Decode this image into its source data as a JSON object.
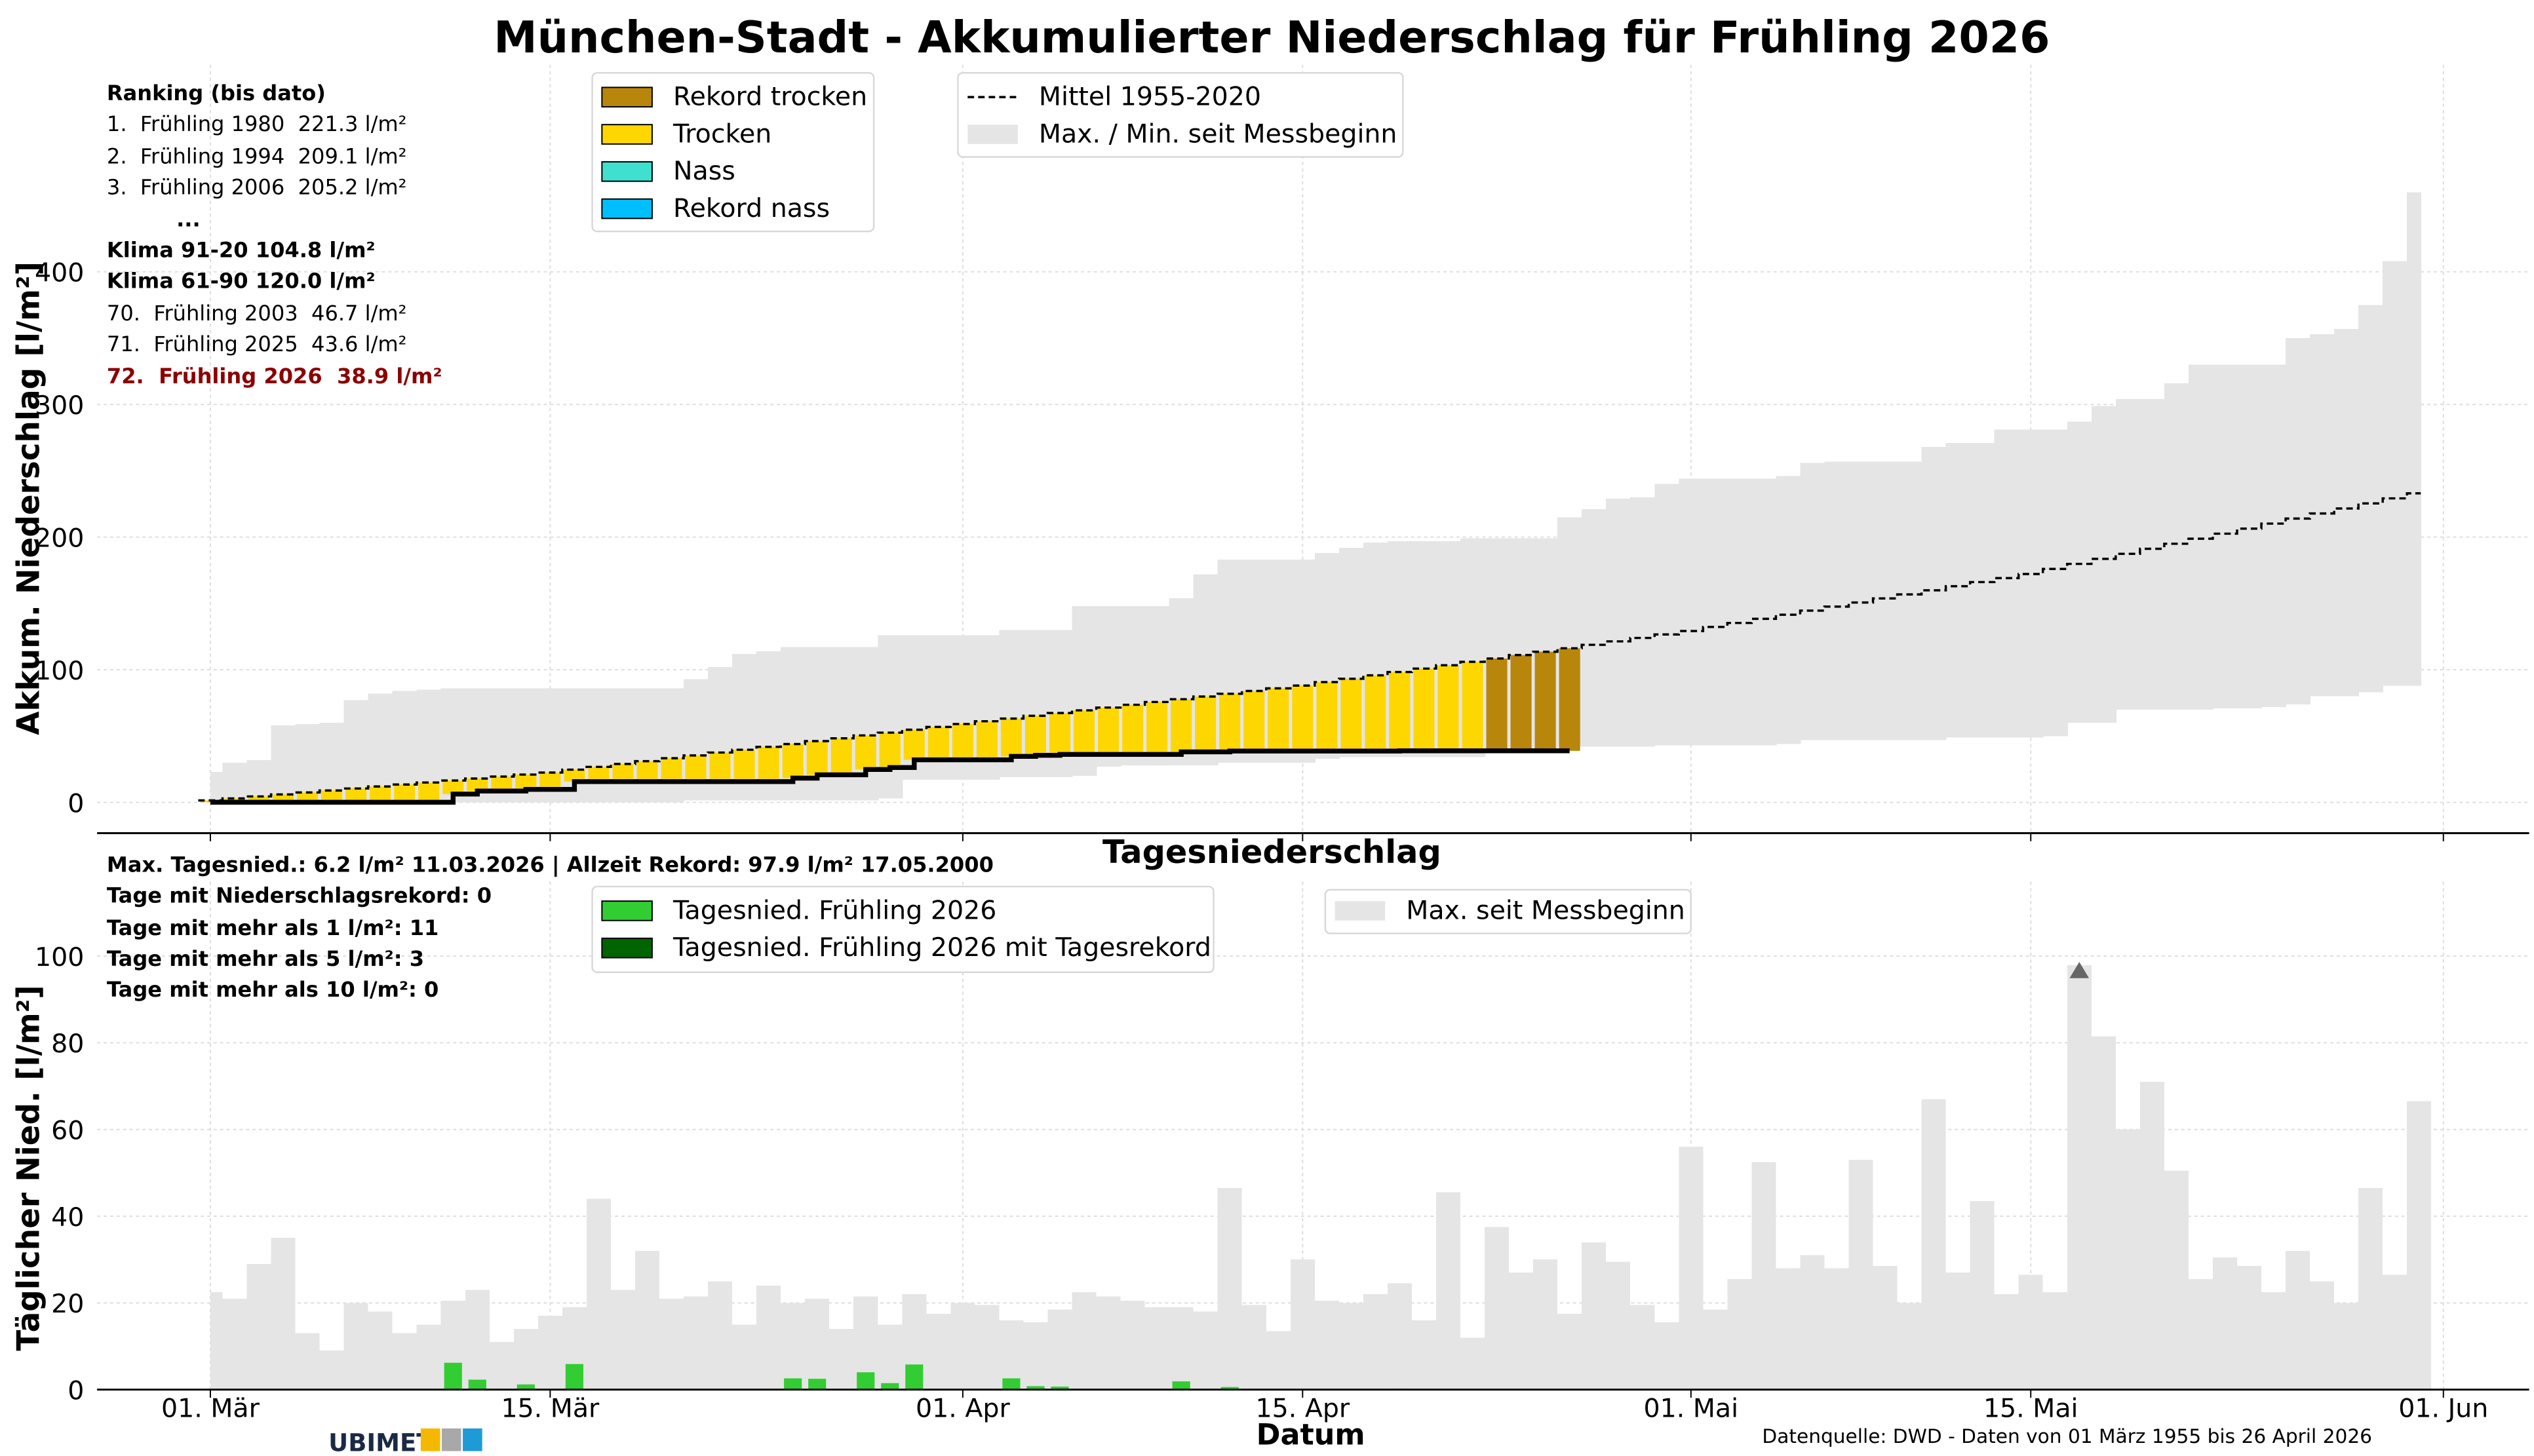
{
  "title": "München-Stadt - Akkumulierter Niederschlag für Frühling 2026",
  "ranking": {
    "heading": "Ranking (bis dato)",
    "top": [
      "1.  Frühling 1980  221.3 l/m²",
      "2.  Frühling 1994  209.1 l/m²",
      "3.  Frühling 2006  205.2 l/m²"
    ],
    "ellipsis": "...",
    "klima": [
      "Klima 91-20 104.8 l/m²",
      "Klima 61-90 120.0 l/m²"
    ],
    "bottom": [
      "70.  Frühling 2003  46.7 l/m²",
      "71.  Frühling 2025  43.6 l/m²"
    ],
    "current": "72.  Frühling 2026  38.9 l/m²"
  },
  "stats": [
    "Max. Tagesnied.: 6.2 l/m² 11.03.2026 | Allzeit Rekord: 97.9 l/m² 17.05.2000",
    "Tage mit Niederschlagsrekord: 0",
    "Tage mit mehr als 1 l/m²: 11",
    "Tage mit mehr als 5 l/m²: 3",
    "Tage mit mehr als 10 l/m²: 0"
  ],
  "legend_category": [
    {
      "label": "Rekord trocken",
      "color": "#B8860B"
    },
    {
      "label": "Trocken",
      "color": "#FFD700"
    },
    {
      "label": "Nass",
      "color": "#40E0D0"
    },
    {
      "label": "Rekord nass",
      "color": "#00BFFF"
    }
  ],
  "legend_reference": [
    {
      "label": "Mittel 1955-2020",
      "icon": "dashed-line"
    },
    {
      "label": "Max. / Min. seit Messbeginn",
      "color": "#E5E5E5"
    }
  ],
  "legend_daily": [
    {
      "label": "Tagesnied. Frühling 2026",
      "color": "#32CD32"
    },
    {
      "label": "Tagesnied. Frühling 2026 mit Tagesrekord",
      "color": "#006400"
    }
  ],
  "legend_daily_max": {
    "label": "Max. seit Messbeginn",
    "color": "#E5E5E5"
  },
  "footer": {
    "source": "Datenquelle: DWD - Daten von 01 März 1955 bis 26 April 2026",
    "logo_text": "UBIMET"
  },
  "chart_data": [
    {
      "type": "bar",
      "title": "München-Stadt - Akkumulierter Niederschlag für Frühling 2026",
      "xlabel": "",
      "ylabel": "Akkum. Niederschlag [l/m²]",
      "ylim": [
        -23,
        480
      ],
      "yticks": [
        0,
        100,
        200,
        300,
        400
      ],
      "xticks": [
        {
          "day": 0,
          "label": "01. Mär"
        },
        {
          "day": 14,
          "label": "15. Mär"
        },
        {
          "day": 31,
          "label": "01. Apr"
        },
        {
          "day": 45,
          "label": "15. Apr"
        },
        {
          "day": 61,
          "label": "01. Mai"
        },
        {
          "day": 75,
          "label": "15. Mai"
        },
        {
          "day": 92,
          "label": "01. Jun"
        }
      ],
      "x_start": "2026-03-01",
      "grid": true,
      "series": [
        {
          "name": "Max. seit Messbeginn (kumuliert)",
          "values": [
            23,
            30,
            32,
            58,
            59,
            60,
            77,
            82,
            84,
            85,
            86,
            86,
            86,
            86,
            86,
            86,
            86,
            86,
            86,
            86,
            93,
            102,
            112,
            114,
            117,
            117,
            117,
            117,
            126,
            126,
            126,
            126,
            126,
            130,
            130,
            130,
            148,
            148,
            148,
            148,
            154,
            172,
            183,
            183,
            183,
            183,
            188,
            192,
            196,
            197,
            197,
            197,
            199,
            199,
            199,
            199,
            215,
            221,
            229,
            230,
            240,
            244,
            244,
            244,
            244,
            246,
            256,
            257,
            257,
            257,
            257,
            268,
            271,
            271,
            281,
            281,
            281,
            287,
            299,
            304,
            304,
            316,
            330,
            330,
            330,
            330,
            350,
            353,
            357,
            375,
            408,
            460
          ]
        },
        {
          "name": "Min. seit Messbeginn (kumuliert)",
          "values": [
            0,
            0,
            0,
            0,
            0,
            0,
            0,
            0,
            0,
            0,
            0,
            0,
            0,
            0,
            0,
            0,
            0,
            0,
            0,
            0,
            1.5,
            1.5,
            1.5,
            1.5,
            1.5,
            1.5,
            1.5,
            1.5,
            3,
            17,
            17,
            17,
            17,
            19,
            19,
            19,
            20,
            27,
            28,
            28,
            28,
            28,
            30,
            30,
            30,
            30,
            33,
            34,
            34,
            34,
            34,
            34,
            34,
            39.5,
            39.5,
            39.5,
            42,
            42,
            42,
            42,
            43,
            43,
            43,
            43,
            43,
            44,
            47,
            47,
            47,
            47,
            47,
            47,
            49,
            49,
            49,
            49,
            50,
            60,
            60,
            70,
            70,
            70,
            70,
            71,
            71,
            72,
            74,
            80,
            80,
            83,
            88,
            88
          ]
        },
        {
          "name": "Mittel 1955-2020",
          "values": [
            1.5,
            3,
            4.5,
            6,
            7.5,
            9,
            10.5,
            12,
            13.5,
            15,
            16.5,
            18,
            19.5,
            21,
            22.5,
            24.7,
            26.8,
            29,
            31.1,
            33.3,
            35.4,
            37.6,
            39.7,
            41.9,
            44,
            46.2,
            48.3,
            50.5,
            52.6,
            54.8,
            56.9,
            59.1,
            61.2,
            63.2,
            65.3,
            67.4,
            69.4,
            71.5,
            73.6,
            75.7,
            77.8,
            79.8,
            81.9,
            84,
            86,
            88.1,
            90.7,
            93.2,
            95.8,
            98.3,
            100.9,
            103.4,
            106,
            108.5,
            111.1,
            113.6,
            116.2,
            118.8,
            121.4,
            124,
            126.6,
            129.2,
            132.3,
            135.3,
            138.4,
            141.5,
            144.6,
            147.6,
            150.7,
            153.8,
            156.8,
            159.9,
            163,
            166.1,
            169.1,
            172.2,
            176,
            179.8,
            183.6,
            187.4,
            191.2,
            195,
            198.8,
            202.6,
            206.4,
            210.2,
            214,
            217.8,
            221.6,
            225.4,
            229.2,
            233
          ]
        }
      ]
    },
    {
      "type": "bar",
      "title": "Tagesniederschlag",
      "xlabel": "Datum",
      "ylabel": "Täglicher Nied. [l/m²]",
      "ylim": [
        0,
        102
      ],
      "yticks": [
        0,
        20,
        40,
        60,
        80,
        100
      ],
      "xticks": [
        {
          "day": 0,
          "label": "01. Mär"
        },
        {
          "day": 14,
          "label": "15. Mär"
        },
        {
          "day": 31,
          "label": "01. Apr"
        },
        {
          "day": 45,
          "label": "15. Apr"
        },
        {
          "day": 61,
          "label": "01. Mai"
        },
        {
          "day": 75,
          "label": "15. Mai"
        },
        {
          "day": 92,
          "label": "01. Jun"
        }
      ],
      "grid": true,
      "record_marker": {
        "day": 77,
        "value": 97.9
      },
      "series": [
        {
          "name": "Max. seit Messbeginn",
          "values": [
            22.5,
            21,
            29,
            35,
            13,
            9,
            20,
            18,
            13,
            15,
            20.5,
            23,
            11,
            14,
            17,
            19,
            44,
            23,
            32,
            21,
            21.5,
            25,
            15,
            24,
            20,
            21,
            14,
            21.5,
            15,
            22,
            17.5,
            20,
            19.5,
            16,
            15.5,
            18.5,
            22.5,
            21.5,
            20.5,
            19,
            19,
            18,
            46.5,
            19.5,
            13.5,
            30,
            20.5,
            20,
            22,
            24.5,
            16,
            45.5,
            12,
            37.5,
            27,
            30,
            17.5,
            34,
            29.5,
            19.5,
            15.5,
            56,
            18.5,
            25.5,
            52.5,
            28,
            31,
            28,
            53,
            28.5,
            20,
            67,
            27,
            43.5,
            22,
            26.5,
            22.5,
            97.9,
            81.5,
            60,
            71,
            50.5,
            25.5,
            30.5,
            28.5,
            22.5,
            32,
            25,
            20,
            46.5,
            26.5,
            66.5
          ]
        },
        {
          "name": "Tagesnied. Frühling 2026",
          "values": [
            0.1,
            0,
            0,
            0,
            0,
            0,
            0,
            0,
            0,
            0,
            6.2,
            2.3,
            0,
            1.2,
            0,
            5.9,
            0,
            0,
            0,
            0,
            0,
            0,
            0,
            0,
            2.6,
            2.5,
            0,
            4.0,
            1.5,
            5.8,
            0,
            0,
            0,
            2.6,
            0.8,
            0.7,
            0,
            0,
            0,
            0,
            1.9,
            0,
            0.6,
            0,
            0,
            0,
            0,
            0,
            0,
            0.2,
            0,
            0,
            0,
            0,
            0,
            0,
            0
          ]
        }
      ]
    }
  ]
}
